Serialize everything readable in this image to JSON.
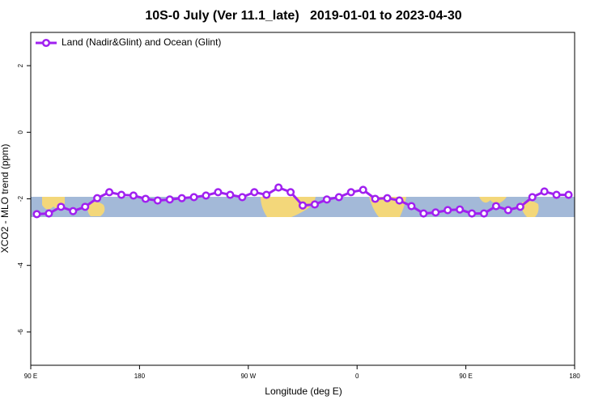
{
  "chart_data": {
    "type": "line",
    "title": "10S-0 July (Ver 11.1_late)   2019-01-01 to 2023-04-30",
    "xlabel": "Longitude (deg E)",
    "ylabel": "XCO2 - MLO trend (ppm)",
    "x": [
      95,
      105,
      115,
      125,
      135,
      145,
      155,
      165,
      175,
      185,
      195,
      205,
      215,
      225,
      235,
      245,
      255,
      265,
      275,
      285,
      295,
      305,
      315,
      325,
      335,
      345,
      355,
      365,
      375,
      385,
      395,
      405,
      415,
      425,
      435,
      445,
      455,
      465,
      475,
      485,
      495,
      505,
      515,
      525,
      535
    ],
    "series": [
      {
        "name": "Land (Nadir&Glint) and Ocean (Glint)",
        "color": "#a020f0",
        "values": [
          -2.46,
          -2.44,
          -2.24,
          -2.37,
          -2.24,
          -1.98,
          -1.8,
          -1.88,
          -1.9,
          -2.0,
          -2.05,
          -2.02,
          -1.98,
          -1.95,
          -1.9,
          -1.8,
          -1.88,
          -1.95,
          -1.8,
          -1.88,
          -1.66,
          -1.8,
          -2.2,
          -2.17,
          -2.02,
          -1.95,
          -1.8,
          -1.73,
          -2.0,
          -1.98,
          -2.05,
          -2.22,
          -2.44,
          -2.41,
          -2.34,
          -2.32,
          -2.44,
          -2.44,
          -2.22,
          -2.34,
          -2.24,
          -1.95,
          -1.78,
          -1.88,
          -1.88
        ]
      }
    ],
    "xlim": [
      90,
      540
    ],
    "xticks": [
      {
        "value": 90,
        "label": "90 E"
      },
      180,
      {
        "value": 270,
        "label": "90 W"
      },
      {
        "value": 360,
        "label": "0"
      },
      {
        "value": 450,
        "label": "90 E"
      },
      {
        "value": 540,
        "label": "180"
      }
    ],
    "ylim": [
      -7,
      3
    ],
    "yticks": [
      2,
      0,
      -2,
      -4,
      -6
    ],
    "legend": "top-left"
  }
}
